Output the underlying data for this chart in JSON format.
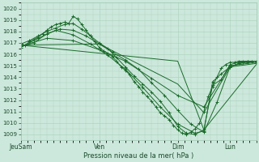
{
  "title": "",
  "xlabel": "Pression niveau de la mer( hPa )",
  "ylabel": "",
  "bg_color": "#cce8dc",
  "grid_color": "#b0d4c0",
  "line_color": "#1a6b2a",
  "ylim": [
    1008.5,
    1020.5
  ],
  "xlim": [
    0,
    108
  ],
  "xtick_positions": [
    0,
    36,
    72,
    96,
    108
  ],
  "xtick_labels": [
    "JeuSam",
    "Ven",
    "Dim",
    "Lun",
    ""
  ],
  "ytick_positions": [
    1009,
    1010,
    1011,
    1012,
    1013,
    1014,
    1015,
    1016,
    1017,
    1018,
    1019,
    1020
  ],
  "lines": [
    {
      "x": [
        0,
        2,
        4,
        6,
        8,
        10,
        12,
        14,
        16,
        18,
        20,
        22,
        24,
        26,
        28,
        30,
        32,
        34,
        36,
        38,
        40,
        42,
        44,
        46,
        48,
        50,
        52,
        54,
        56,
        58,
        60,
        62,
        64,
        66,
        68,
        70,
        72,
        74,
        76,
        78,
        80,
        82,
        84,
        86,
        88,
        90,
        92,
        94,
        96,
        98,
        100,
        102,
        104,
        106,
        108
      ],
      "y": [
        1016.9,
        1016.8,
        1017.1,
        1017.3,
        1017.5,
        1017.8,
        1018.1,
        1018.4,
        1018.6,
        1018.7,
        1018.8,
        1018.7,
        1019.3,
        1019.1,
        1018.6,
        1018.1,
        1017.6,
        1017.1,
        1016.6,
        1016.3,
        1016.1,
        1015.8,
        1015.4,
        1014.9,
        1014.6,
        1014.2,
        1013.6,
        1013.2,
        1012.7,
        1012.3,
        1011.9,
        1011.4,
        1010.9,
        1010.6,
        1010.3,
        1009.8,
        1009.4,
        1009.1,
        1009.0,
        1009.2,
        1009.5,
        1010.0,
        1011.0,
        1012.3,
        1013.2,
        1014.0,
        1014.8,
        1015.1,
        1015.3,
        1015.3,
        1015.4,
        1015.4,
        1015.4,
        1015.4,
        1015.4
      ],
      "marker": "+",
      "lw": 0.7,
      "ms": 2.5
    },
    {
      "x": [
        0,
        4,
        8,
        12,
        16,
        20,
        24,
        28,
        32,
        36,
        40,
        44,
        48,
        52,
        56,
        60,
        64,
        68,
        72,
        76,
        80,
        84,
        88,
        92,
        96,
        100,
        104,
        108
      ],
      "y": [
        1016.9,
        1017.2,
        1017.6,
        1018.0,
        1018.3,
        1018.6,
        1018.7,
        1018.2,
        1017.6,
        1017.0,
        1016.5,
        1015.7,
        1014.9,
        1014.1,
        1013.4,
        1012.7,
        1011.9,
        1010.9,
        1009.7,
        1009.1,
        1009.0,
        1009.4,
        1013.3,
        1013.8,
        1015.1,
        1015.3,
        1015.4,
        1015.4
      ],
      "marker": "+",
      "lw": 0.7,
      "ms": 2.5
    },
    {
      "x": [
        0,
        6,
        12,
        18,
        24,
        30,
        36,
        42,
        48,
        54,
        60,
        66,
        72,
        78,
        84,
        90,
        96,
        102,
        108
      ],
      "y": [
        1016.7,
        1017.0,
        1017.8,
        1018.2,
        1018.1,
        1017.6,
        1016.9,
        1016.2,
        1015.5,
        1014.7,
        1013.5,
        1012.4,
        1011.1,
        1009.9,
        1009.2,
        1011.8,
        1014.9,
        1015.3,
        1015.4
      ],
      "marker": "+",
      "lw": 0.7,
      "ms": 2.5
    },
    {
      "x": [
        0,
        8,
        16,
        24,
        32,
        40,
        48,
        56,
        64,
        72,
        80,
        84,
        88,
        92,
        96,
        100,
        104,
        108
      ],
      "y": [
        1016.6,
        1017.4,
        1018.1,
        1017.7,
        1016.9,
        1015.9,
        1014.7,
        1013.1,
        1011.4,
        1009.9,
        1009.1,
        1009.3,
        1013.6,
        1014.3,
        1014.9,
        1015.2,
        1015.3,
        1015.4
      ],
      "marker": "+",
      "lw": 0.7,
      "ms": 2.5
    },
    {
      "x": [
        0,
        12,
        24,
        36,
        48,
        60,
        72,
        84,
        96,
        108
      ],
      "y": [
        1016.7,
        1017.4,
        1017.2,
        1016.4,
        1015.4,
        1013.9,
        1012.4,
        1011.4,
        1015.0,
        1015.3
      ],
      "marker": "+",
      "lw": 0.7,
      "ms": 2.5
    },
    {
      "x": [
        0,
        36,
        72,
        84,
        96,
        108
      ],
      "y": [
        1016.8,
        1016.9,
        1013.4,
        1010.9,
        1014.9,
        1015.2
      ],
      "marker": null,
      "lw": 0.7,
      "ms": 0
    },
    {
      "x": [
        0,
        72,
        84,
        108
      ],
      "y": [
        1016.8,
        1015.4,
        1009.4,
        1015.1
      ],
      "marker": null,
      "lw": 0.7,
      "ms": 0
    }
  ]
}
